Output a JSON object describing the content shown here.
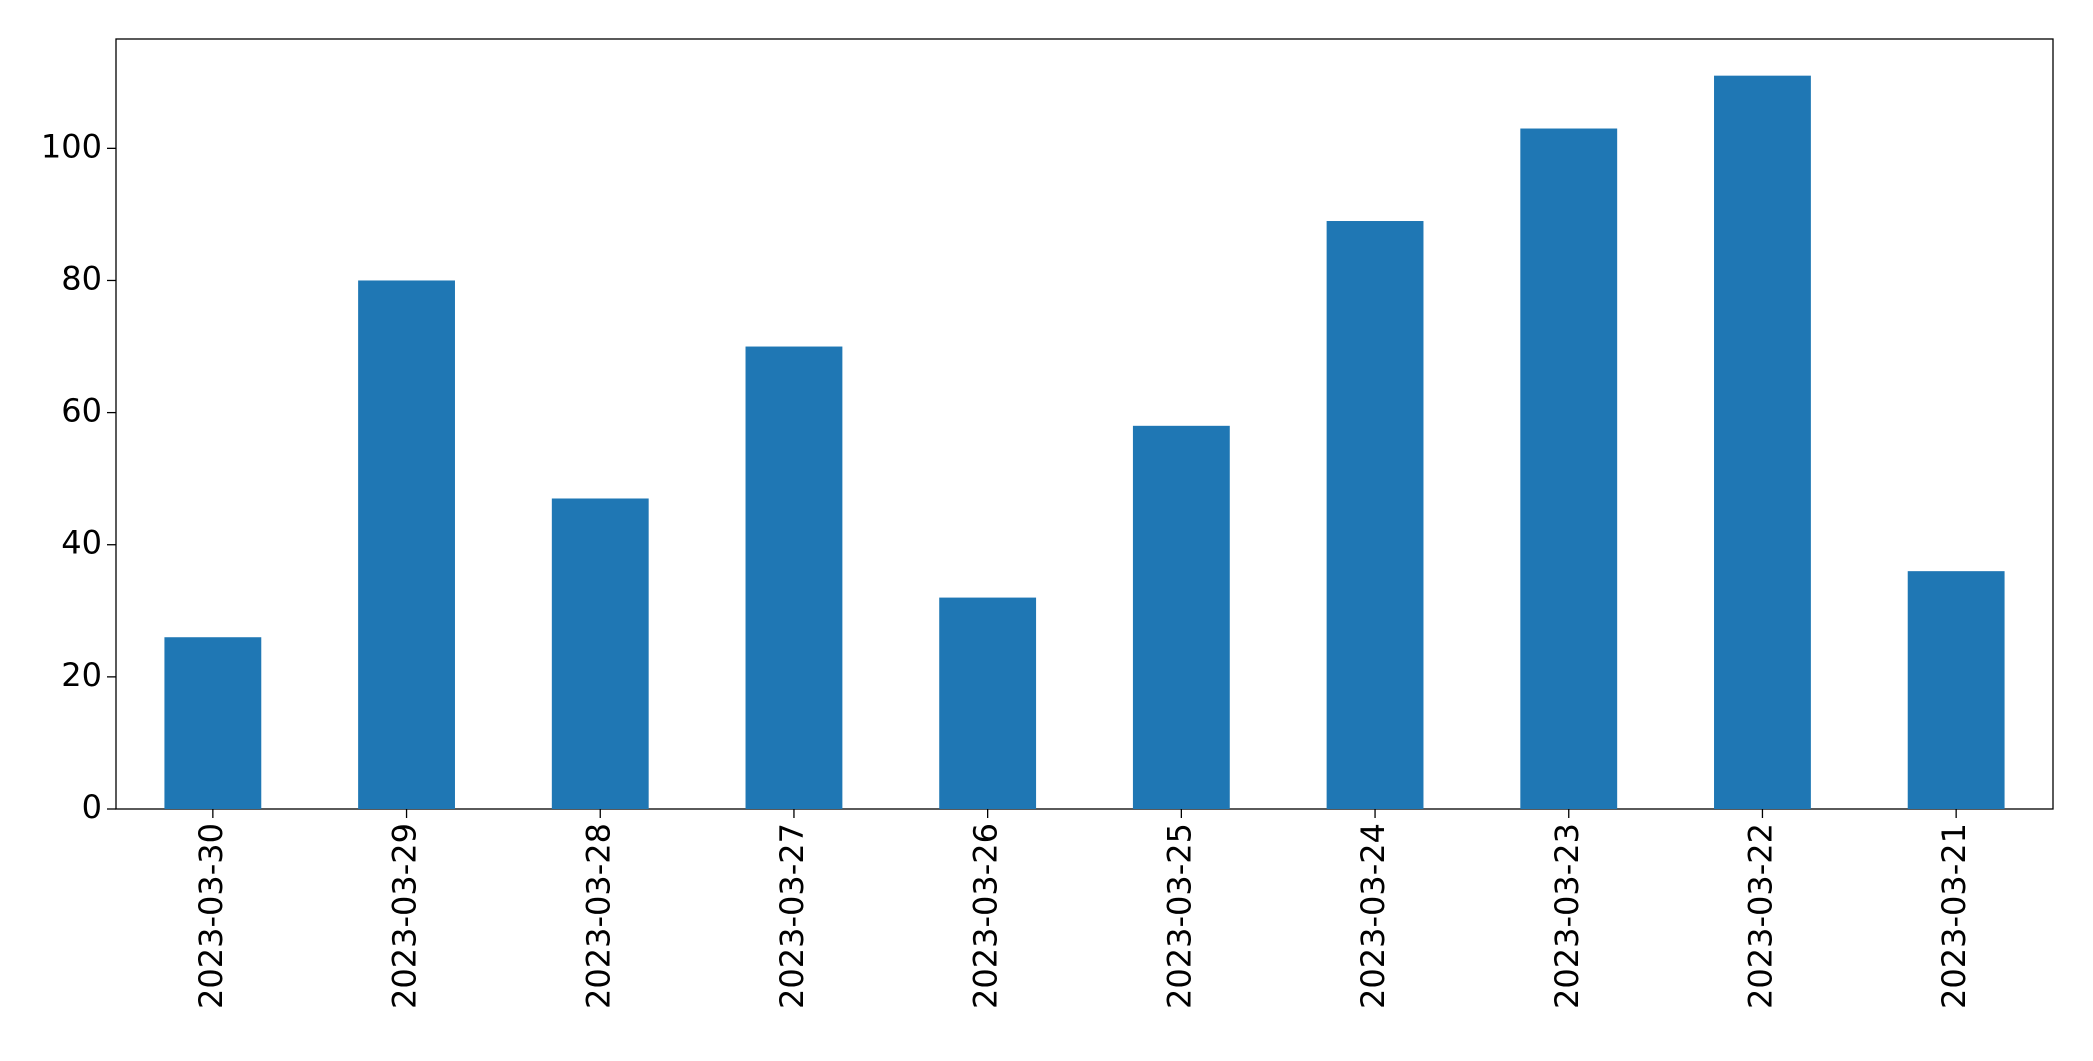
{
  "chart_data": {
    "type": "bar",
    "categories": [
      "2023-03-30",
      "2023-03-29",
      "2023-03-28",
      "2023-03-27",
      "2023-03-26",
      "2023-03-25",
      "2023-03-24",
      "2023-03-23",
      "2023-03-22",
      "2023-03-21"
    ],
    "values": [
      26,
      80,
      47,
      70,
      32,
      58,
      89,
      103,
      111,
      36
    ],
    "color": "#1f77b4",
    "ylim": [
      0,
      116.55
    ],
    "yticks": [
      0,
      20,
      40,
      60,
      80,
      100
    ],
    "grid": false
  }
}
